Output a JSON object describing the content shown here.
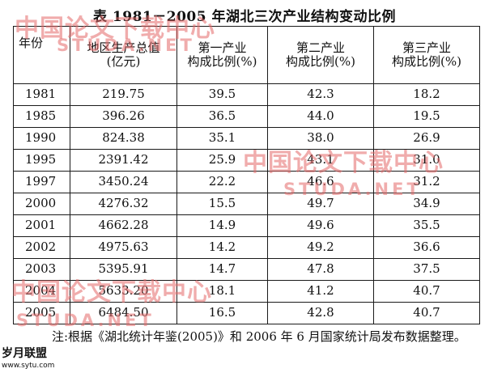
{
  "title": "表  1981－2005 年湖北三次产业结构变动比例",
  "table": {
    "headers": {
      "year": "年份",
      "gdp": [
        "地区生产总值",
        "(亿元)"
      ],
      "primary": [
        "第一产业",
        "构成比例(%)"
      ],
      "secondary": [
        "第二产业",
        "构成比例(%)"
      ],
      "tertiary": [
        "第三产业",
        "构成比例(%)"
      ]
    },
    "rows": [
      [
        "1981",
        "219.75",
        "39.5",
        "42.3",
        "18.2"
      ],
      [
        "1985",
        "396.26",
        "36.5",
        "44.0",
        "19.5"
      ],
      [
        "1990",
        "824.38",
        "35.1",
        "38.0",
        "26.9"
      ],
      [
        "1995",
        "2391.42",
        "25.9",
        "43.1",
        "31.0"
      ],
      [
        "1997",
        "3450.24",
        "22.2",
        "46.6",
        "31.2"
      ],
      [
        "2000",
        "4276.32",
        "15.5",
        "49.7",
        "34.9"
      ],
      [
        "2001",
        "4662.28",
        "14.9",
        "49.6",
        "35.5"
      ],
      [
        "2002",
        "4975.63",
        "14.2",
        "49.2",
        "36.6"
      ],
      [
        "2003",
        "5395.91",
        "14.7",
        "47.8",
        "37.5"
      ],
      [
        "2004",
        "5633.20",
        "18.1",
        "41.2",
        "40.7"
      ],
      [
        "2005",
        "6484.50",
        "16.5",
        "42.8",
        "40.7"
      ]
    ]
  },
  "note": "注:根据《湖北统计年鉴(2005)》和 2006 年 6 月国家统计局发布数据整理。",
  "watermarks": {
    "cn": "中国论文下载中心",
    "en": "STUDA.NET"
  },
  "logo": {
    "line1": "岁月联盟",
    "line2": "www.sytu.com"
  },
  "colors": {
    "watermark": "#e46a6a",
    "text": "#111111",
    "border": "#1a1a1a"
  }
}
